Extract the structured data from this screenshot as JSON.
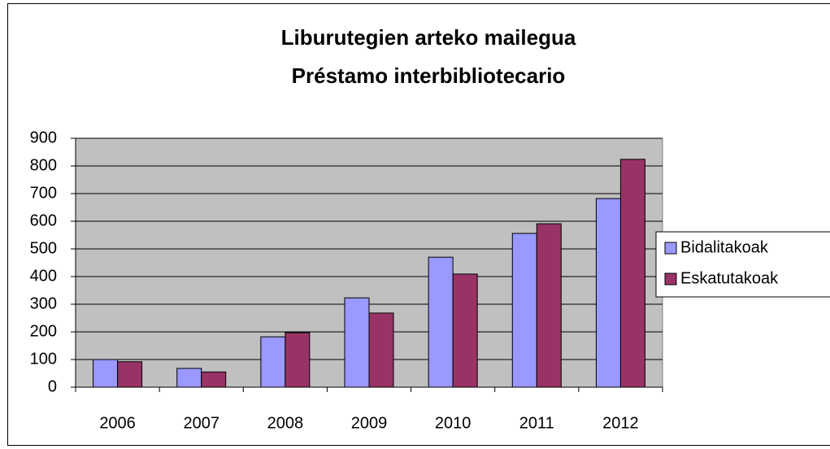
{
  "chart_data": {
    "type": "bar",
    "title": [
      "Liburutegien arteko mailegua",
      "Préstamo interbibliotecario"
    ],
    "categories": [
      "2006",
      "2007",
      "2008",
      "2009",
      "2010",
      "2011",
      "2012"
    ],
    "series": [
      {
        "name": "Bidalitakoak",
        "color": "#9999ff",
        "values": [
          100,
          68,
          182,
          323,
          470,
          556,
          682
        ]
      },
      {
        "name": "Eskatutakoak",
        "color": "#993366",
        "values": [
          92,
          55,
          197,
          268,
          409,
          591,
          824
        ]
      }
    ],
    "ylim": [
      0,
      900
    ],
    "yticks": [
      0,
      100,
      200,
      300,
      400,
      500,
      600,
      700,
      800,
      900
    ],
    "grid": true,
    "legend": "right",
    "plot_background": "#c0c0c0"
  }
}
